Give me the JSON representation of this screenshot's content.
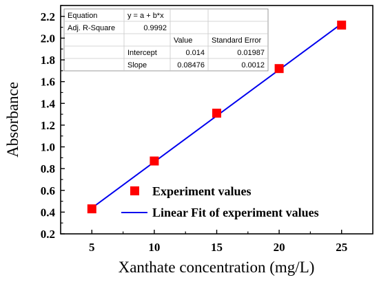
{
  "chart_data": {
    "type": "scatter",
    "xlabel": "Xanthate concentration (mg/L)",
    "ylabel": "Absorbance",
    "xlim": [
      2.5,
      27.5
    ],
    "ylim": [
      0.2,
      2.3
    ],
    "xticks": [
      "5",
      "10",
      "15",
      "20",
      "25"
    ],
    "xtick_values": [
      5,
      10,
      15,
      20,
      25
    ],
    "yticks": [
      "0.2",
      "0.4",
      "0.6",
      "0.8",
      "1.0",
      "1.2",
      "1.4",
      "1.6",
      "1.8",
      "2.0",
      "2.2"
    ],
    "ytick_values": [
      0.2,
      0.4,
      0.6,
      0.8,
      1.0,
      1.2,
      1.4,
      1.6,
      1.8,
      2.0,
      2.2
    ],
    "grid": false,
    "legend_position": "bottom-right",
    "series": [
      {
        "name": "Experiment values",
        "kind": "scatter",
        "marker": "square",
        "color": "#ff0000",
        "x": [
          5,
          10,
          15,
          20,
          25
        ],
        "y": [
          0.43,
          0.87,
          1.31,
          1.72,
          2.12
        ]
      },
      {
        "name": "Linear Fit of experiment values",
        "kind": "line",
        "color": "#0000ee",
        "x": [
          5,
          25
        ],
        "y": [
          0.4378,
          2.133
        ]
      }
    ],
    "stats_table": {
      "rows": [
        [
          "Equation",
          "y = a + b*x",
          "",
          ""
        ],
        [
          "Adj. R-Square",
          "0.9992",
          "",
          ""
        ],
        [
          "",
          "",
          "Value",
          "Standard Error"
        ],
        [
          "",
          "Intercept",
          "0.014",
          "0.01987"
        ],
        [
          "",
          "Slope",
          "0.08476",
          "0.0012"
        ]
      ]
    }
  }
}
